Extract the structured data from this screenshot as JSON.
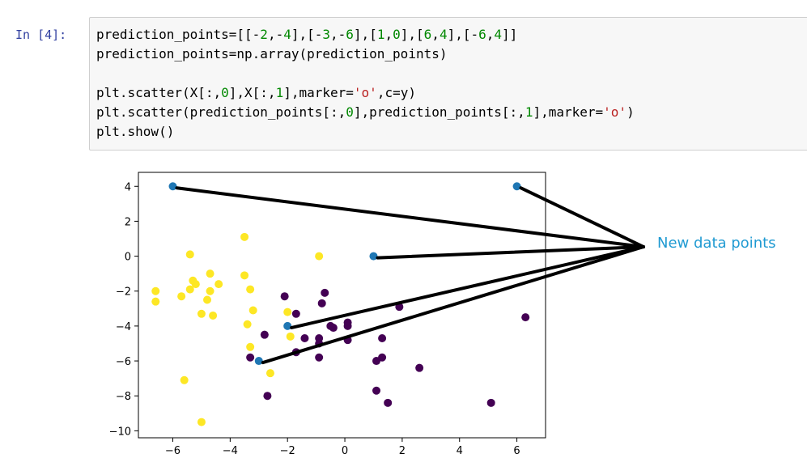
{
  "cell": {
    "prompt": "In [4]:",
    "code_lines": [
      [
        {
          "t": "prediction_points=[[-"
        },
        {
          "t": "2",
          "c": "num"
        },
        {
          "t": ",-"
        },
        {
          "t": "4",
          "c": "num"
        },
        {
          "t": "],[-"
        },
        {
          "t": "3",
          "c": "num"
        },
        {
          "t": ",-"
        },
        {
          "t": "6",
          "c": "num"
        },
        {
          "t": "],["
        },
        {
          "t": "1",
          "c": "num"
        },
        {
          "t": ","
        },
        {
          "t": "0",
          "c": "num"
        },
        {
          "t": "],["
        },
        {
          "t": "6",
          "c": "num"
        },
        {
          "t": ","
        },
        {
          "t": "4",
          "c": "num"
        },
        {
          "t": "],[-"
        },
        {
          "t": "6",
          "c": "num"
        },
        {
          "t": ","
        },
        {
          "t": "4",
          "c": "num"
        },
        {
          "t": "]]"
        }
      ],
      [
        {
          "t": "prediction_points=np.array(prediction_points)"
        }
      ],
      [],
      [
        {
          "t": "plt.scatter(X[:,"
        },
        {
          "t": "0",
          "c": "num"
        },
        {
          "t": "],X[:,"
        },
        {
          "t": "1",
          "c": "num"
        },
        {
          "t": "],marker="
        },
        {
          "t": "'o'",
          "c": "str"
        },
        {
          "t": ",c=y)"
        }
      ],
      [
        {
          "t": "plt.scatter(prediction_points[:,"
        },
        {
          "t": "0",
          "c": "num"
        },
        {
          "t": "],prediction_points[:,"
        },
        {
          "t": "1",
          "c": "num"
        },
        {
          "t": "],marker="
        },
        {
          "t": "'o'",
          "c": "str"
        },
        {
          "t": ")"
        }
      ],
      [
        {
          "t": "plt.show()"
        }
      ]
    ]
  },
  "annotation": {
    "label": "New data points",
    "color": "#1f9ad2"
  },
  "chart_data": {
    "type": "scatter",
    "xlim": [
      -7.2,
      7.0
    ],
    "ylim": [
      -10.4,
      4.8
    ],
    "xticks": [
      -6,
      -4,
      -2,
      0,
      2,
      4,
      6
    ],
    "yticks": [
      4,
      2,
      0,
      -2,
      -4,
      -6,
      -8,
      -10
    ],
    "xtick_labels": [
      "−6",
      "−4",
      "−2",
      "0",
      "2",
      "4",
      "6"
    ],
    "ytick_labels": [
      "4",
      "2",
      "0",
      "−2",
      "−4",
      "−6",
      "−8",
      "−10"
    ],
    "grid": false,
    "series": [
      {
        "color": "#fde725",
        "points": [
          [
            -6.6,
            -2.0
          ],
          [
            -6.6,
            -2.6
          ],
          [
            -5.7,
            -2.3
          ],
          [
            -5.6,
            -7.1
          ],
          [
            -5.4,
            0.1
          ],
          [
            -5.4,
            -1.9
          ],
          [
            -5.3,
            -1.4
          ],
          [
            -5.2,
            -1.6
          ],
          [
            -5.0,
            -3.3
          ],
          [
            -5.0,
            -9.5
          ],
          [
            -4.8,
            -2.5
          ],
          [
            -4.7,
            -1.0
          ],
          [
            -4.7,
            -2.0
          ],
          [
            -4.6,
            -3.4
          ],
          [
            -4.4,
            -1.6
          ],
          [
            -3.5,
            1.1
          ],
          [
            -3.5,
            -1.1
          ],
          [
            -3.4,
            -3.9
          ],
          [
            -3.3,
            -5.2
          ],
          [
            -3.3,
            -1.9
          ],
          [
            -3.2,
            -3.1
          ],
          [
            -2.6,
            -6.7
          ],
          [
            -2.0,
            -3.2
          ],
          [
            -1.9,
            -4.6
          ],
          [
            -0.9,
            0.0
          ]
        ]
      },
      {
        "color": "#440154",
        "points": [
          [
            -3.3,
            -5.8
          ],
          [
            -2.8,
            -4.5
          ],
          [
            -2.7,
            -8.0
          ],
          [
            -2.1,
            -2.3
          ],
          [
            -1.7,
            -3.3
          ],
          [
            -1.7,
            -5.5
          ],
          [
            -1.4,
            -4.7
          ],
          [
            -0.9,
            -5.0
          ],
          [
            -0.9,
            -4.7
          ],
          [
            -0.9,
            -5.8
          ],
          [
            -0.8,
            -2.7
          ],
          [
            -0.7,
            -2.1
          ],
          [
            -0.5,
            -4.0
          ],
          [
            -0.4,
            -4.1
          ],
          [
            0.1,
            -3.8
          ],
          [
            0.1,
            -4.0
          ],
          [
            0.1,
            -4.8
          ],
          [
            1.1,
            -7.7
          ],
          [
            1.1,
            -6.0
          ],
          [
            1.3,
            -4.7
          ],
          [
            1.3,
            -5.8
          ],
          [
            1.5,
            -8.4
          ],
          [
            1.9,
            -2.9
          ],
          [
            2.6,
            -6.4
          ],
          [
            5.1,
            -8.4
          ],
          [
            6.3,
            -3.5
          ]
        ]
      },
      {
        "color": "#1f77b4",
        "points": [
          [
            -2,
            -4
          ],
          [
            -3,
            -6
          ],
          [
            1,
            0
          ],
          [
            6,
            4
          ],
          [
            -6,
            4
          ]
        ]
      }
    ]
  }
}
